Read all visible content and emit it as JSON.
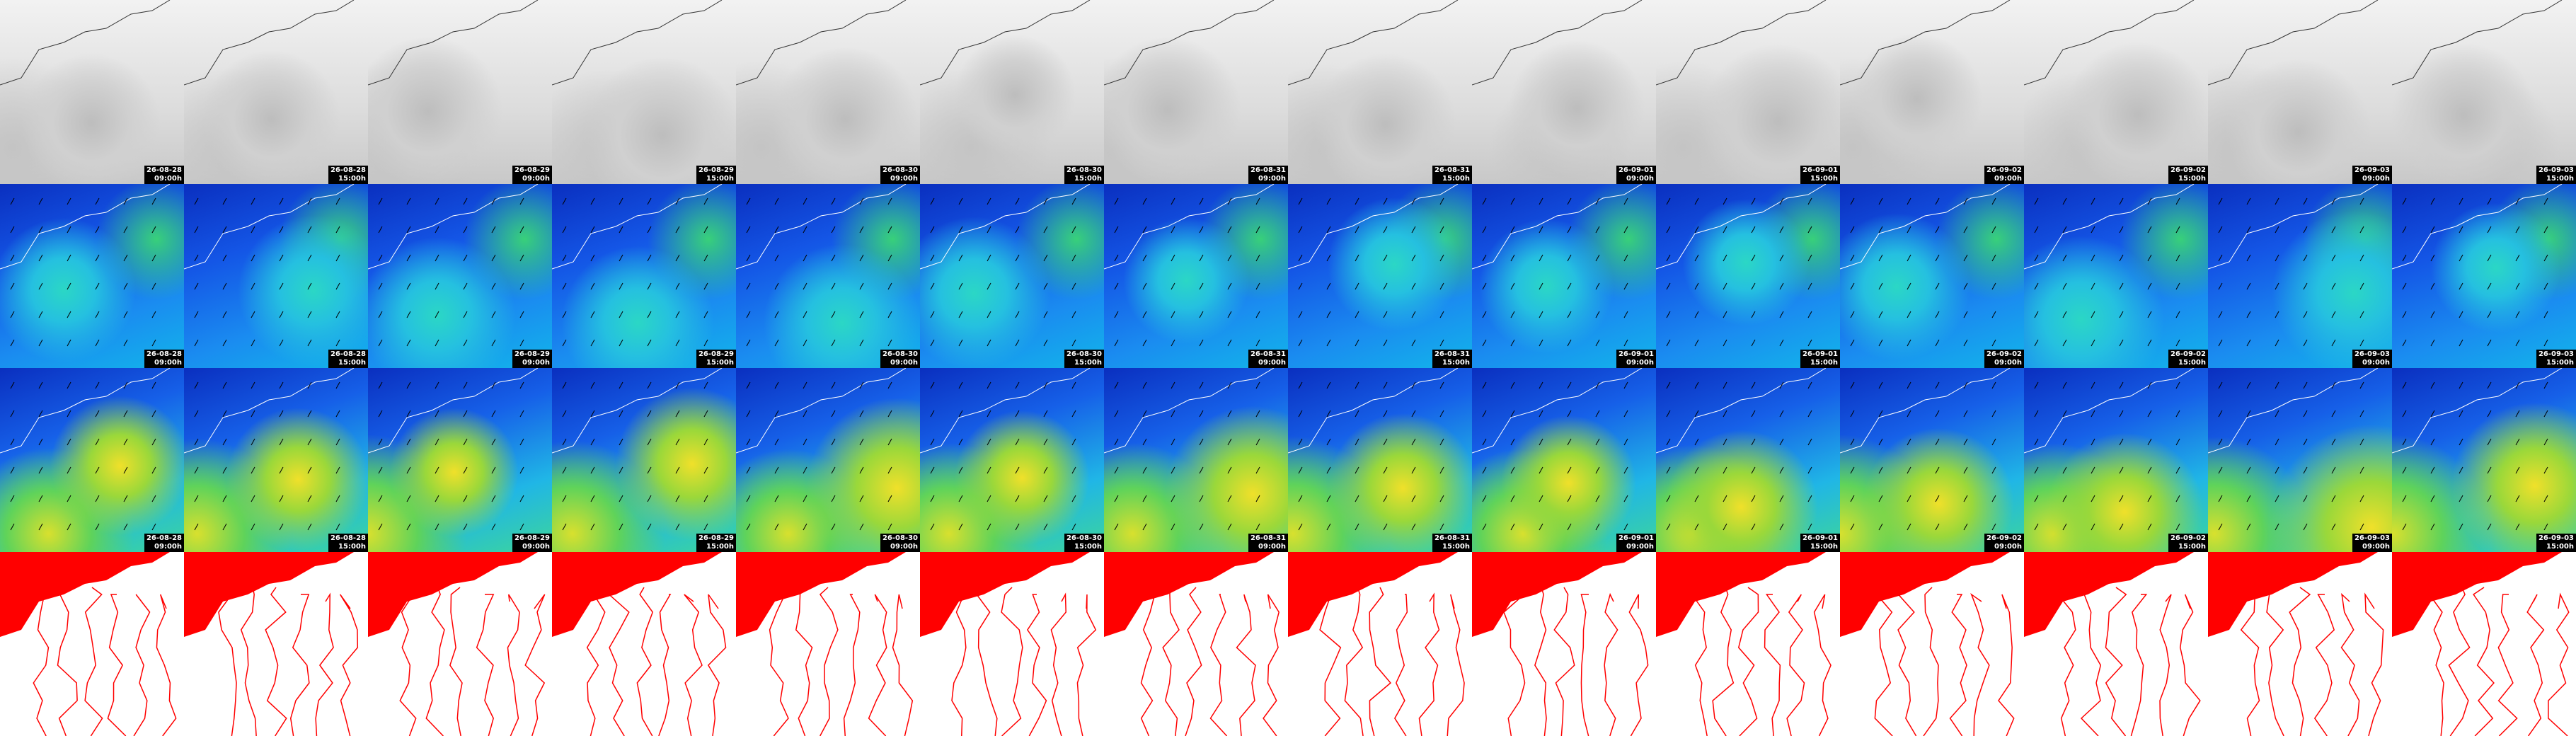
{
  "columns": [
    {
      "date": "26-08-28",
      "time": "09:00h"
    },
    {
      "date": "26-08-28",
      "time": "15:00h"
    },
    {
      "date": "26-08-29",
      "time": "09:00h"
    },
    {
      "date": "26-08-29",
      "time": "15:00h"
    },
    {
      "date": "26-08-30",
      "time": "09:00h"
    },
    {
      "date": "26-08-30",
      "time": "15:00h"
    },
    {
      "date": "26-08-31",
      "time": "09:00h"
    },
    {
      "date": "26-08-31",
      "time": "15:00h"
    },
    {
      "date": "26-09-01",
      "time": "09:00h"
    },
    {
      "date": "26-09-01",
      "time": "15:00h"
    },
    {
      "date": "26-09-02",
      "time": "09:00h"
    },
    {
      "date": "26-09-02",
      "time": "15:00h"
    },
    {
      "date": "26-09-03",
      "time": "09:00h"
    },
    {
      "date": "26-09-03",
      "time": "15:00h"
    }
  ]
}
